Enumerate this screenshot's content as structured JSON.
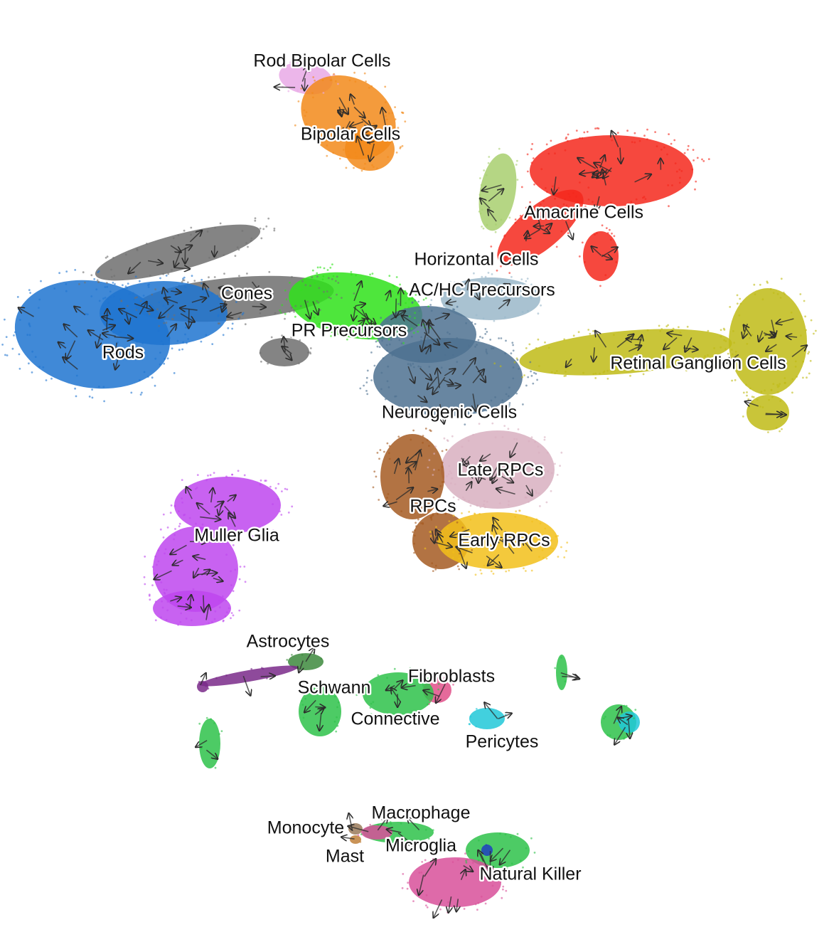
{
  "chart_data": {
    "type": "scatter",
    "title": "",
    "xlabel": "",
    "ylabel": "",
    "axes_visible": false,
    "legend": "none",
    "overlay": "velocity-arrows",
    "series": [
      {
        "name": "Rod Bipolar Cells",
        "color": "#e9a9e6"
      },
      {
        "name": "Bipolar Cells",
        "color": "#f28a1a"
      },
      {
        "name": "Amacrine Cells",
        "color": "#f4281c"
      },
      {
        "name": "Horizontal Cells",
        "color": "#a8cf6e"
      },
      {
        "name": "AC/HC Precursors",
        "color": "#9ab7c9"
      },
      {
        "name": "Cones",
        "color": "#6f6f6f"
      },
      {
        "name": "PR Precursors",
        "color": "#2fe21a"
      },
      {
        "name": "Rods",
        "color": "#1f74d0"
      },
      {
        "name": "Retinal Ganglion Cells",
        "color": "#c0bb16"
      },
      {
        "name": "Neurogenic Cells",
        "color": "#4e7191"
      },
      {
        "name": "Late RPCs",
        "color": "#d8afc0"
      },
      {
        "name": "RPCs",
        "color": "#a55a22"
      },
      {
        "name": "Early RPCs",
        "color": "#f2c01a"
      },
      {
        "name": "Muller Glia",
        "color": "#be47ee"
      },
      {
        "name": "Astrocytes",
        "color": "#3d8a3d"
      },
      {
        "name": "Schwann",
        "color": "#7a2a8a"
      },
      {
        "name": "Fibroblasts",
        "color": "#e0508a"
      },
      {
        "name": "Connective",
        "color": "#2ec24a"
      },
      {
        "name": "Pericytes",
        "color": "#21c8d8"
      },
      {
        "name": "Macrophage",
        "color": "#2ec24a"
      },
      {
        "name": "Monocyte",
        "color": "#9a7a5a"
      },
      {
        "name": "Mast",
        "color": "#c0803a"
      },
      {
        "name": "Microglia",
        "color": "#d8509a"
      },
      {
        "name": "Natural Killer",
        "color": "#2040c0"
      }
    ]
  }
}
